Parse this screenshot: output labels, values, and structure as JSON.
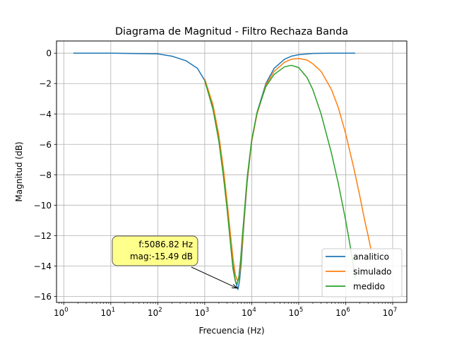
{
  "chart_data": {
    "type": "line",
    "title": "Diagrama de Magnitud - Filtro Rechaza Banda",
    "xlabel": "Frecuencia (Hz)",
    "ylabel": "Magnitud (dB)",
    "xscale": "log",
    "xlim": [
      0.7,
      20000000
    ],
    "ylim": [
      -16.4,
      0.8
    ],
    "grid": true,
    "legend_position": "lower right",
    "x_ticks": [
      {
        "value": 1,
        "base": "10",
        "exp": "0"
      },
      {
        "value": 10,
        "base": "10",
        "exp": "1"
      },
      {
        "value": 100,
        "base": "10",
        "exp": "2"
      },
      {
        "value": 1000,
        "base": "10",
        "exp": "3"
      },
      {
        "value": 10000,
        "base": "10",
        "exp": "4"
      },
      {
        "value": 100000,
        "base": "10",
        "exp": "5"
      },
      {
        "value": 1000000,
        "base": "10",
        "exp": "6"
      },
      {
        "value": 10000000,
        "base": "10",
        "exp": "7"
      }
    ],
    "y_ticks": [
      {
        "value": 0,
        "label": "0"
      },
      {
        "value": -2,
        "label": "−2"
      },
      {
        "value": -4,
        "label": "−4"
      },
      {
        "value": -6,
        "label": "−6"
      },
      {
        "value": -8,
        "label": "−8"
      },
      {
        "value": -10,
        "label": "−10"
      },
      {
        "value": -12,
        "label": "−12"
      },
      {
        "value": -14,
        "label": "−14"
      },
      {
        "value": -16,
        "label": "−16"
      }
    ],
    "series": [
      {
        "name": "analitico",
        "color": "#1f77b4",
        "x": [
          1.6,
          10,
          100,
          200,
          400,
          700,
          1000,
          1500,
          2000,
          2500,
          3000,
          3500,
          4000,
          4500,
          5087,
          5500,
          6000,
          6500,
          7000,
          8000,
          10000,
          13000,
          20000,
          30000,
          50000,
          70000,
          100000,
          200000,
          500000,
          1000000,
          1600000
        ],
        "y": [
          0,
          0,
          -0.05,
          -0.2,
          -0.5,
          -1.0,
          -1.8,
          -3.6,
          -5.6,
          -7.9,
          -10.1,
          -12.2,
          -14.0,
          -15.0,
          -15.55,
          -15.0,
          -13.8,
          -12.2,
          -10.8,
          -8.5,
          -5.8,
          -3.9,
          -2.0,
          -1.0,
          -0.4,
          -0.2,
          -0.1,
          -0.02,
          0,
          0,
          0
        ]
      },
      {
        "name": "simulado",
        "color": "#ff7f0e",
        "x": [
          1000,
          1500,
          2000,
          2500,
          3000,
          3500,
          4000,
          4500,
          5000,
          5500,
          6000,
          6500,
          7000,
          8000,
          10000,
          13000,
          20000,
          30000,
          50000,
          70000,
          100000,
          150000,
          200000,
          300000,
          500000,
          700000,
          1000000,
          1500000,
          2000000,
          2500000,
          3000000,
          3500000
        ],
        "y": [
          -1.7,
          -3.4,
          -5.4,
          -7.6,
          -9.8,
          -11.8,
          -13.5,
          -14.6,
          -15.0,
          -14.6,
          -13.4,
          -12.0,
          -10.6,
          -8.4,
          -5.8,
          -4.0,
          -2.1,
          -1.2,
          -0.6,
          -0.4,
          -0.35,
          -0.45,
          -0.7,
          -1.2,
          -2.4,
          -3.6,
          -5.3,
          -7.6,
          -9.4,
          -10.9,
          -12.0,
          -13.0
        ]
      },
      {
        "name": "medido",
        "color": "#2ca02c",
        "x": [
          1000,
          1500,
          2000,
          2500,
          3000,
          3500,
          4000,
          4500,
          4900,
          5300,
          5800,
          6300,
          7000,
          8000,
          10000,
          13000,
          20000,
          30000,
          50000,
          70000,
          100000,
          150000,
          200000,
          300000,
          500000,
          700000,
          1000000,
          1300000,
          1600000
        ],
        "y": [
          -1.8,
          -3.7,
          -5.8,
          -8.1,
          -10.3,
          -12.4,
          -14.2,
          -15.0,
          -15.2,
          -14.8,
          -13.6,
          -12.1,
          -10.4,
          -8.2,
          -5.7,
          -3.9,
          -2.2,
          -1.4,
          -0.9,
          -0.8,
          -0.95,
          -1.6,
          -2.4,
          -4.0,
          -6.6,
          -8.6,
          -11.0,
          -13.0,
          -14.8
        ]
      }
    ],
    "annotation": {
      "lines": [
        "f:5086.82 Hz",
        "mag:-15.49 dB"
      ],
      "point_x": 5086.82,
      "point_y": -15.49,
      "box_color": "#ffff80"
    }
  }
}
